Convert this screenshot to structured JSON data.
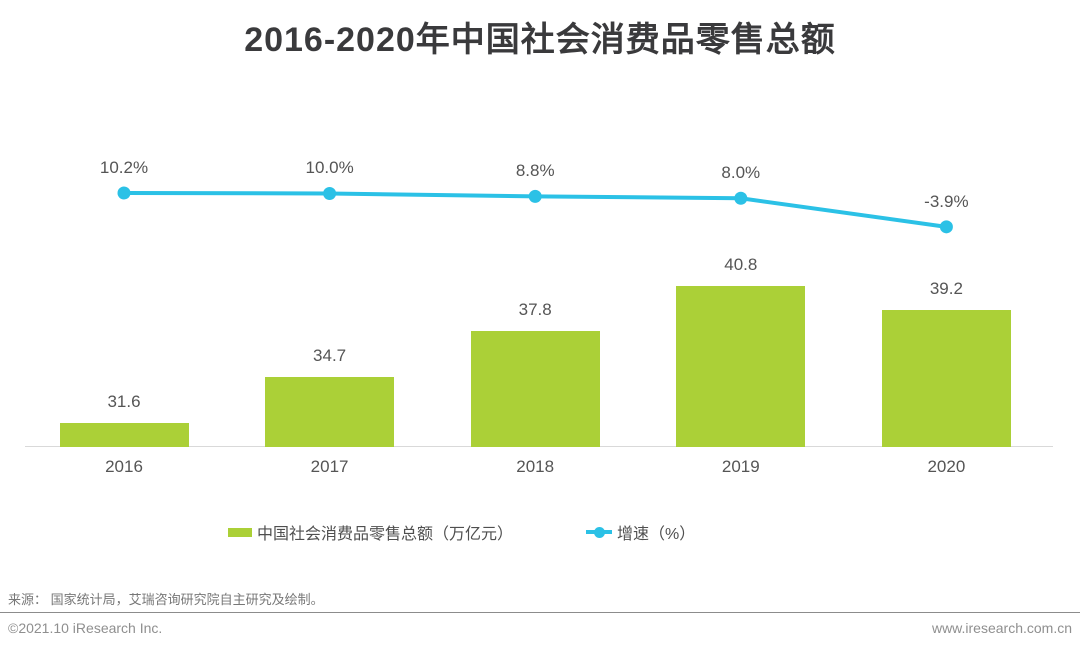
{
  "page": {
    "title": "2016-2020年中国社会消费品零售总额"
  },
  "chart_data": {
    "type": "bar",
    "title": "2016-2020年中国社会消费品零售总额",
    "categories": [
      "2016",
      "2017",
      "2018",
      "2019",
      "2020"
    ],
    "series": [
      {
        "name": "中国社会消费品零售总额（万亿元）",
        "type": "bar",
        "unit": "万亿元",
        "values": [
          31.6,
          34.7,
          37.8,
          40.8,
          39.2
        ],
        "data_labels": [
          "31.6",
          "34.7",
          "37.8",
          "40.8",
          "39.2"
        ],
        "color": "#abd037"
      },
      {
        "name": "增速（%）",
        "type": "line",
        "unit": "%",
        "values": [
          10.2,
          10.0,
          8.8,
          8.0,
          -3.9
        ],
        "data_labels": [
          "10.2%",
          "10.0%",
          "8.8%",
          "8.0%",
          "-3.9%"
        ],
        "color": "#2bc1e6"
      }
    ],
    "legend_position": "bottom",
    "grid": false,
    "bar_axis_min": 30,
    "x_axis_line": true
  },
  "legend": {
    "bar_label": "中国社会消费品零售总额（万亿元）",
    "line_label": "增速（%）"
  },
  "source_line": "来源： 国家统计局，艾瑞咨询研究院自主研究及绘制。",
  "footer": {
    "copyright": "©2021.10 iResearch Inc.",
    "website": "www.iresearch.com.cn"
  },
  "colors": {
    "bar": "#abd037",
    "line": "#2bc1e6",
    "title_text": "#3a3a3c",
    "label_text": "#555555",
    "axis_line": "#d9d9d9",
    "footer_text": "#8f8f8f"
  }
}
